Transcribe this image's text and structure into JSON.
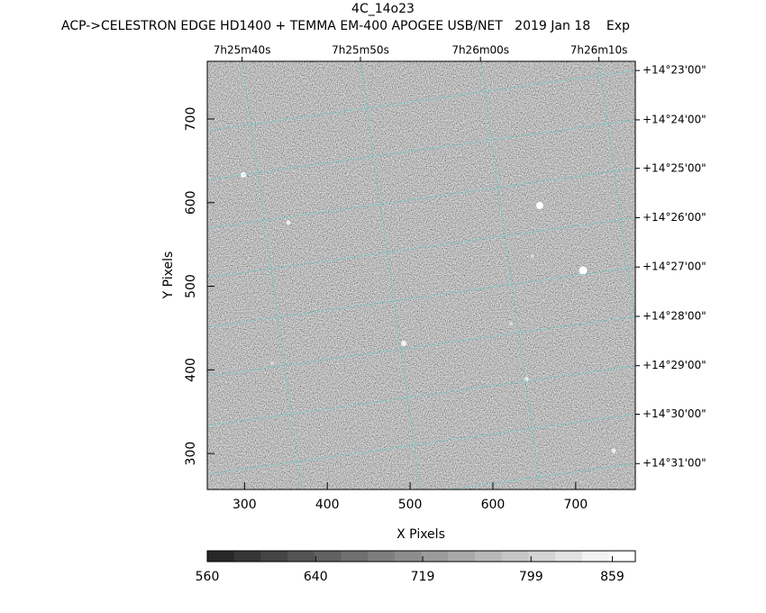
{
  "chart_data": {
    "type": "image",
    "title": "4C_14o23",
    "subtitle": "ACP->CELESTRON EDGE HD1400 + TEMMA EM-400 APOGEE USB/NET   2019 Jan 18    Exp",
    "x_label": "X Pixels",
    "y_label": "Y Pixels",
    "xlim": [
      255,
      772
    ],
    "ylim": [
      257,
      769
    ],
    "xticks": [
      300,
      400,
      500,
      600,
      700
    ],
    "yticks": [
      300,
      400,
      500,
      600,
      700
    ],
    "x2ticks": [
      {
        "value": 297,
        "label": "7h25m40s"
      },
      {
        "value": 440,
        "label": "7h25m50s"
      },
      {
        "value": 585,
        "label": "7h26m00s"
      },
      {
        "value": 728,
        "label": "7h26m10s"
      }
    ],
    "y2ticks": [
      {
        "value": 758,
        "label": "+14°23'00\""
      },
      {
        "value": 699,
        "label": "+14°24'00\""
      },
      {
        "value": 641,
        "label": "+14°25'00\""
      },
      {
        "value": 582,
        "label": "+14°26'00\""
      },
      {
        "value": 523,
        "label": "+14°27'00\""
      },
      {
        "value": 464,
        "label": "+14°28'00\""
      },
      {
        "value": 405,
        "label": "+14°29'00\""
      },
      {
        "value": 347,
        "label": "+14°30'00\""
      },
      {
        "value": 288,
        "label": "+14°31'00\""
      }
    ],
    "clim": [
      560,
      876
    ],
    "cticks": [
      560,
      640,
      719,
      799,
      859
    ],
    "grid": true
  }
}
